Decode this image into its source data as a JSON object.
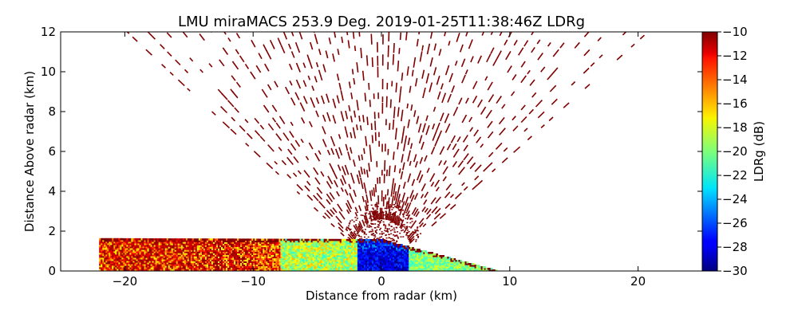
{
  "chart_data": {
    "type": "heatmap",
    "title": "LMU miraMACS 253.9 Deg. 2019-01-25T11:38:46Z  LDRg",
    "xlabel": "Distance from radar (km)",
    "ylabel": "Distance Above radar  (km)",
    "xlim": [
      -25,
      25
    ],
    "ylim": [
      0,
      12
    ],
    "xticks": [
      "−20",
      "−10",
      "0",
      "10",
      "20"
    ],
    "xtick_values": [
      -20,
      -10,
      0,
      10,
      20
    ],
    "yticks": [
      "0",
      "2",
      "4",
      "6",
      "8",
      "10",
      "12"
    ],
    "ytick_values": [
      0,
      2,
      4,
      6,
      8,
      10,
      12
    ],
    "colorbar": {
      "label": "LDRg (dB)",
      "range": [
        -30,
        -10
      ],
      "ticks": [
        "−10",
        "−12",
        "−14",
        "−16",
        "−18",
        "−20",
        "−22",
        "−24",
        "−26",
        "−28",
        "−30"
      ],
      "tick_values": [
        -10,
        -12,
        -14,
        -16,
        -18,
        -20,
        -22,
        -24,
        -26,
        -28,
        -30
      ],
      "colormap": "jet"
    },
    "regions": [
      {
        "name": "sparse noise echoes",
        "ldr_db": -10,
        "x_range": [
          -22,
          22
        ],
        "height_range": [
          2.5,
          12
        ]
      },
      {
        "name": "near-radar noise cluster",
        "ldr_db": -10,
        "x_range": [
          -3,
          3
        ],
        "height_range": [
          1.5,
          3.5
        ]
      },
      {
        "name": "boundary layer echo west",
        "ldr_db_range": [
          -18,
          -10
        ],
        "x_range": [
          -22,
          -8
        ],
        "height_range": [
          0,
          1.6
        ]
      },
      {
        "name": "boundary layer echo central",
        "ldr_db_range": [
          -22,
          -16
        ],
        "x_range": [
          -8,
          -2
        ],
        "height_range": [
          0,
          1.6
        ]
      },
      {
        "name": "boundary layer echo near radar",
        "ldr_db_range": [
          -30,
          -24
        ],
        "x_range": [
          -2,
          2
        ],
        "height_range": [
          0,
          1.6
        ]
      },
      {
        "name": "boundary layer echo east",
        "ldr_db_range": [
          -22,
          -18
        ],
        "x_range": [
          2,
          9
        ],
        "height_range": [
          0,
          1.6
        ]
      }
    ],
    "grid": false,
    "legend": "colorbar-right"
  },
  "colors": {
    "noise": "#800000",
    "axis": "#000000"
  }
}
